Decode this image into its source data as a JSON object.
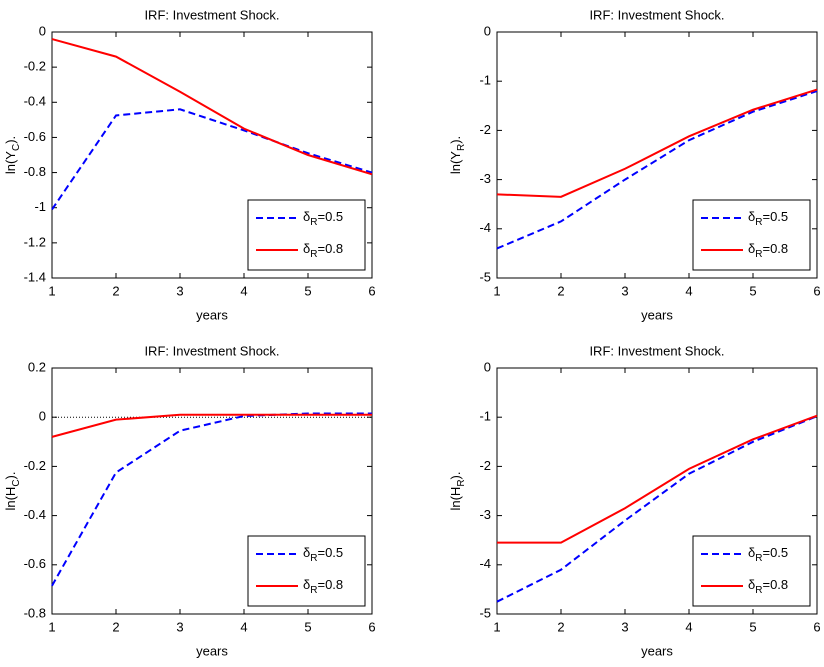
{
  "chart_data": [
    {
      "type": "line",
      "title": "IRF:  Investment Shock.",
      "xlabel": "years",
      "ylabel": [
        "ln(Y",
        "C",
        ")."
      ],
      "x": [
        1,
        2,
        3,
        4,
        5,
        6
      ],
      "xlim": [
        1,
        6
      ],
      "xticks": [
        1,
        2,
        3,
        4,
        5,
        6
      ],
      "ylim": [
        -1.4,
        0
      ],
      "yticks": [
        0,
        -0.2,
        -0.4,
        -0.6,
        -0.8,
        -1,
        -1.2,
        -1.4
      ],
      "legend": "lower right",
      "series": [
        {
          "name": [
            "δ",
            "R",
            "=0.5"
          ],
          "color": "#0000ff",
          "dash": true,
          "values": [
            -1.01,
            -0.475,
            -0.44,
            -0.56,
            -0.69,
            -0.8
          ]
        },
        {
          "name": [
            "δ",
            "R",
            "=0.8"
          ],
          "color": "#ff0000",
          "dash": false,
          "values": [
            -0.04,
            -0.14,
            -0.34,
            -0.55,
            -0.7,
            -0.81
          ]
        }
      ]
    },
    {
      "type": "line",
      "title": "IRF:  Investment Shock.",
      "xlabel": "years",
      "ylabel": [
        "ln(Y",
        "R",
        ")."
      ],
      "x": [
        1,
        2,
        3,
        4,
        5,
        6
      ],
      "xlim": [
        1,
        6
      ],
      "xticks": [
        1,
        2,
        3,
        4,
        5,
        6
      ],
      "ylim": [
        -5,
        0
      ],
      "yticks": [
        0,
        -1,
        -2,
        -3,
        -4,
        -5
      ],
      "legend": "lower right",
      "series": [
        {
          "name": [
            "δ",
            "R",
            "=0.5"
          ],
          "color": "#0000ff",
          "dash": true,
          "values": [
            -4.4,
            -3.85,
            -3.0,
            -2.2,
            -1.62,
            -1.2
          ]
        },
        {
          "name": [
            "δ",
            "R",
            "=0.8"
          ],
          "color": "#ff0000",
          "dash": false,
          "values": [
            -3.3,
            -3.35,
            -2.78,
            -2.12,
            -1.58,
            -1.17
          ]
        }
      ]
    },
    {
      "type": "line",
      "title": "IRF:  Investment Shock.",
      "xlabel": "years",
      "ylabel": [
        "ln(H",
        "C",
        ")."
      ],
      "x": [
        1,
        2,
        3,
        4,
        5,
        6
      ],
      "xlim": [
        1,
        6
      ],
      "xticks": [
        1,
        2,
        3,
        4,
        5,
        6
      ],
      "ylim": [
        -0.8,
        0.2
      ],
      "yticks": [
        0.2,
        0,
        -0.2,
        -0.4,
        -0.6,
        -0.8
      ],
      "legend": "lower right",
      "series": [
        {
          "name": [
            "δ",
            "R",
            "=0.5"
          ],
          "color": "#0000ff",
          "dash": true,
          "values": [
            -0.685,
            -0.225,
            -0.055,
            0.005,
            0.015,
            0.015
          ]
        },
        {
          "name": [
            "δ",
            "R",
            "=0.8"
          ],
          "color": "#ff0000",
          "dash": false,
          "values": [
            -0.08,
            -0.01,
            0.01,
            0.01,
            0.01,
            0.01
          ]
        }
      ]
    },
    {
      "type": "line",
      "title": "IRF:  Investment Shock.",
      "xlabel": "years",
      "ylabel": [
        "ln(H",
        "R",
        ")."
      ],
      "x": [
        1,
        2,
        3,
        4,
        5,
        6
      ],
      "xlim": [
        1,
        6
      ],
      "xticks": [
        1,
        2,
        3,
        4,
        5,
        6
      ],
      "ylim": [
        -5,
        0
      ],
      "yticks": [
        0,
        -1,
        -2,
        -3,
        -4,
        -5
      ],
      "legend": "lower right",
      "series": [
        {
          "name": [
            "δ",
            "R",
            "=0.5"
          ],
          "color": "#0000ff",
          "dash": true,
          "values": [
            -4.75,
            -4.1,
            -3.1,
            -2.15,
            -1.5,
            -0.98
          ]
        },
        {
          "name": [
            "δ",
            "R",
            "=0.8"
          ],
          "color": "#ff0000",
          "dash": false,
          "values": [
            -3.55,
            -3.55,
            -2.85,
            -2.05,
            -1.45,
            -0.97
          ]
        }
      ]
    }
  ]
}
